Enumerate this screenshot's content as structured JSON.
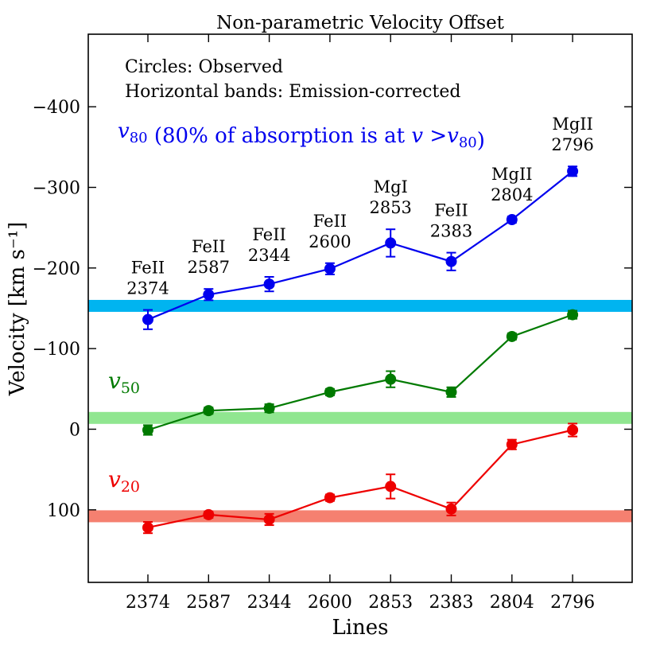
{
  "chart_data": {
    "type": "line",
    "title": "Non-parametric Velocity Offset",
    "xlabel": "Lines",
    "ylabel": "Velocity [km s⁻¹]",
    "ylim": [
      -490,
      190
    ],
    "yaxis_inverted": true,
    "yticks": [
      -400,
      -300,
      -200,
      -100,
      0,
      100
    ],
    "ytick_labels": [
      "−400",
      "−300",
      "−200",
      "−100",
      "0",
      "100"
    ],
    "categories": [
      "2374",
      "2587",
      "2344",
      "2600",
      "2853",
      "2383",
      "2804",
      "2796"
    ],
    "line_labels": [
      {
        "ion": "FeII",
        "wave": "2374"
      },
      {
        "ion": "FeII",
        "wave": "2587"
      },
      {
        "ion": "FeII",
        "wave": "2344"
      },
      {
        "ion": "FeII",
        "wave": "2600"
      },
      {
        "ion": "MgI",
        "wave": "2853"
      },
      {
        "ion": "FeII",
        "wave": "2383"
      },
      {
        "ion": "MgII",
        "wave": "2804"
      },
      {
        "ion": "MgII",
        "wave": "2796"
      }
    ],
    "notes": [
      "Circles: Observed",
      "Horizontal bands: Emission-corrected"
    ],
    "series": [
      {
        "name": "v80",
        "label_sym": "v",
        "label_sub": "80",
        "label_text": " (80% of absorption is at ",
        "label_text2": " >",
        "label_close": ")",
        "color": "#0000ee",
        "values": [
          -136,
          -167,
          -180,
          -199,
          -231,
          -208,
          -260,
          -320
        ],
        "errors": [
          12,
          7,
          9,
          7,
          17,
          11,
          4,
          6
        ],
        "band": {
          "value": -153,
          "color": "#00b4f0"
        }
      },
      {
        "name": "v50",
        "label_sym": "v",
        "label_sub": "50",
        "color": "#007a00",
        "values": [
          1,
          -23,
          -26,
          -46,
          -62,
          -46,
          -115,
          -142
        ],
        "errors": [
          6,
          4,
          5,
          4,
          10,
          6,
          4,
          5
        ],
        "band": {
          "value": -14,
          "color": "#90e690"
        }
      },
      {
        "name": "v20",
        "label_sym": "v",
        "label_sub": "20",
        "color": "#ee0000",
        "values": [
          122,
          106,
          112,
          85,
          71,
          99,
          19,
          1
        ],
        "errors": [
          7,
          4,
          7,
          4,
          15,
          8,
          6,
          8
        ],
        "band": {
          "value": 108,
          "color": "#f58070"
        }
      }
    ]
  }
}
